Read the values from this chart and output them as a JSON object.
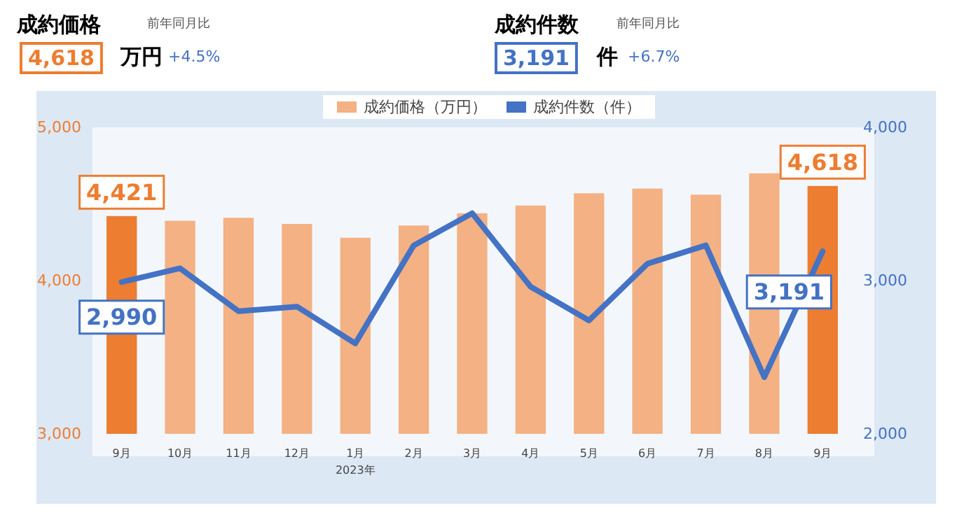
{
  "chart_data": {
    "type": "bar",
    "annotations": [
      "成約価格",
      "前年同月比",
      "4,618",
      "万円",
      "+4.5%",
      "成約件数",
      "前年同月比",
      "3,191",
      "件",
      "+6.7%"
    ],
    "categories": [
      "9月",
      "10月",
      "11月",
      "12月",
      "1月\n2023年",
      "2月",
      "3月",
      "4月",
      "5月",
      "6月",
      "7月",
      "8月",
      "9月"
    ],
    "series": [
      {
        "name": "成約価格（万円）",
        "color": "#f4b183",
        "colors": [
          "#ed7d31",
          "#f4b183",
          "#f4b183",
          "#f4b183",
          "#f4b183",
          "#f4b183",
          "#f4b183",
          "#f4b183",
          "#f4b183",
          "#f4b183",
          "#f4b183",
          "#f4b183",
          "#ed7d31"
        ],
        "values": [
          4421,
          4390,
          4410,
          4370,
          4280,
          4360,
          4440,
          4490,
          4570,
          4600,
          4560,
          4700,
          4618
        ],
        "value_labels": [
          "4,421",
          null,
          null,
          null,
          null,
          null,
          null,
          null,
          null,
          null,
          null,
          null,
          "4,618"
        ]
      },
      {
        "name": "成約件数（件）",
        "type": "line",
        "axis": "y2",
        "color": "#4472c4",
        "values": [
          2990,
          3080,
          2800,
          2830,
          2590,
          3230,
          3440,
          2960,
          2740,
          3110,
          3230,
          2370,
          3191
        ],
        "value_labels": [
          "2,990",
          null,
          null,
          null,
          null,
          null,
          null,
          null,
          null,
          null,
          null,
          null,
          "3,191"
        ]
      }
    ],
    "ylim": [
      3000,
      5000
    ],
    "yticks": [
      {
        "value": 3000,
        "label": "3,000"
      },
      {
        "value": 4000,
        "label": "4,000"
      },
      {
        "value": 5000,
        "label": "5,000"
      }
    ],
    "y2lim": [
      2000,
      4000
    ],
    "y2ticks": [
      {
        "value": 2000,
        "label": "2,000"
      },
      {
        "value": 3000,
        "label": "3,000"
      },
      {
        "value": 4000,
        "label": "4,000"
      }
    ],
    "legend": "top",
    "grid": false,
    "marker": "none",
    "line_style": "solid"
  }
}
